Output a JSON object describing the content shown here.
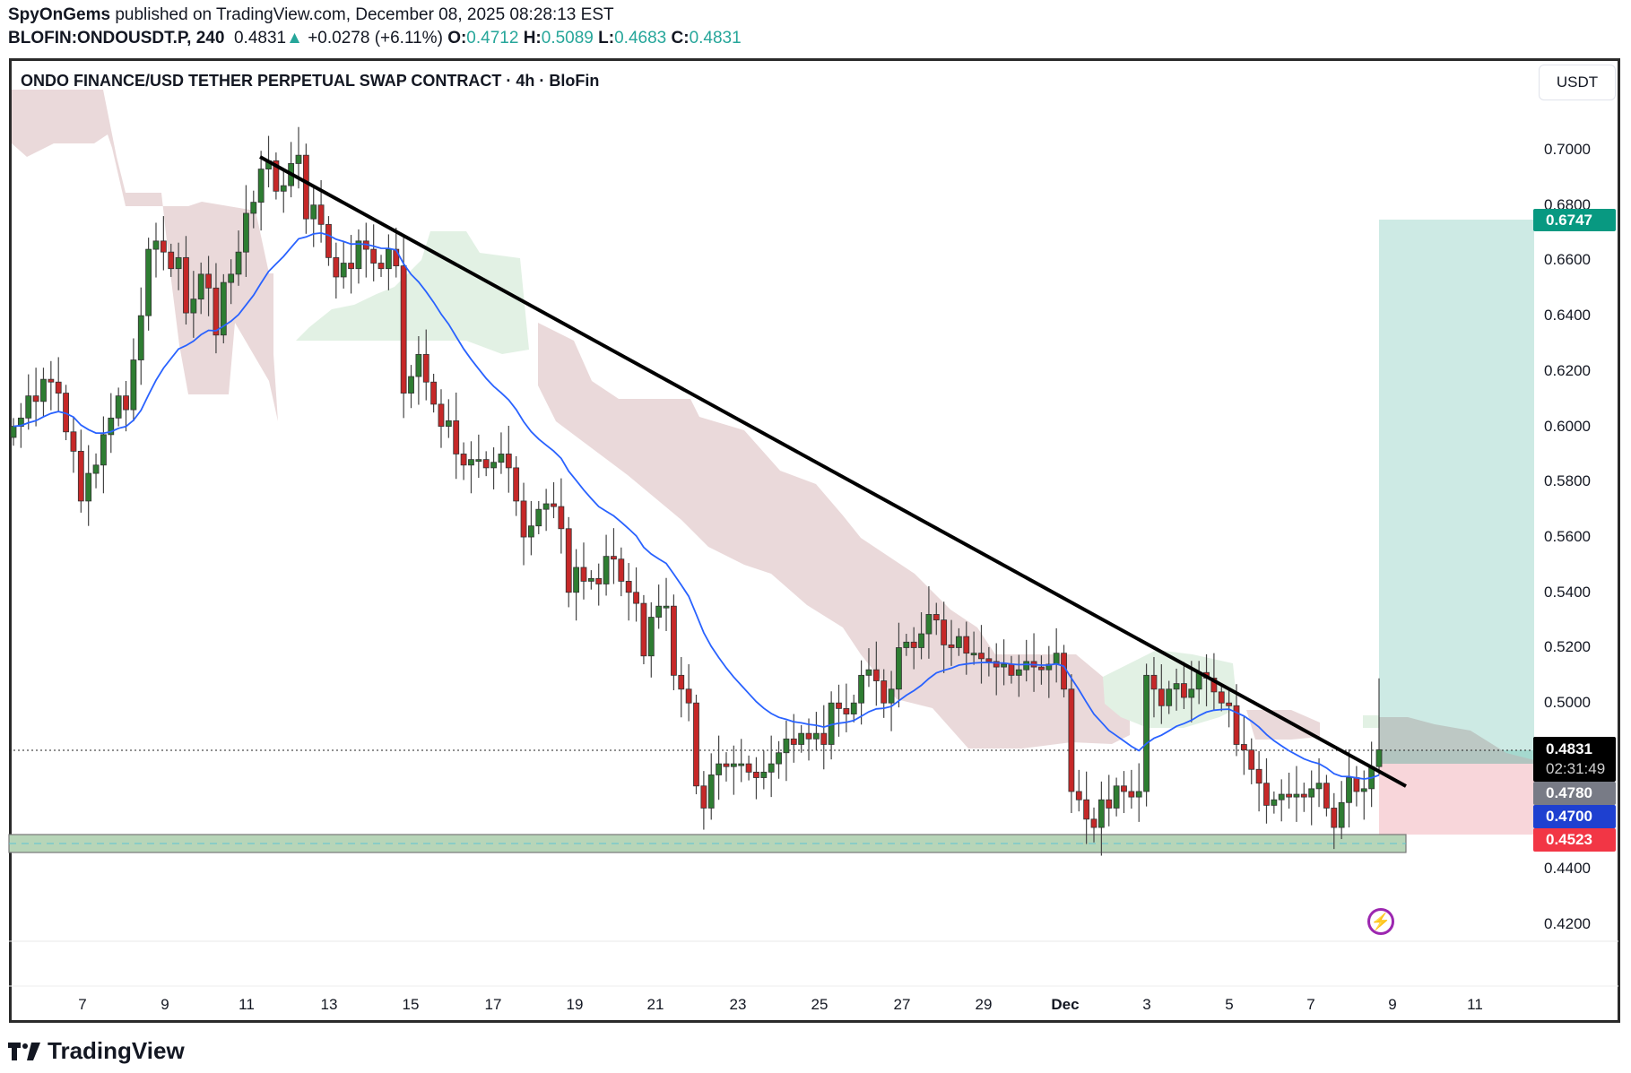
{
  "header": {
    "author": "SpyOnGems",
    "published_text": "published on TradingView.com, December 08, 2025 08:28:13 EST",
    "symbol": "BLOFIN:ONDOUSDT.P, 240",
    "last": "0.4831",
    "change": "+0.0278 (+6.11%)",
    "o_label": "O:",
    "o": "0.4712",
    "h_label": "H:",
    "h": "0.5089",
    "l_label": "L:",
    "l": "0.4683",
    "c_label": "C:",
    "c": "0.4831"
  },
  "chart_title": "ONDO FINANCE/USD TETHER PERPETUAL SWAP CONTRACT · 4h · BloFin",
  "currency_button": "USDT",
  "price_tags": {
    "target": "0.6747",
    "last_price": "0.4831",
    "countdown": "02:31:49",
    "entry": "0.4780",
    "ma": "0.4700",
    "stop": "0.4523"
  },
  "colors": {
    "up": "#2e7d32",
    "down": "#c62828",
    "ma_line": "#2962ff",
    "target_tag": "#089981",
    "entry_tag": "#787b86",
    "ma_tag": "#1e40d0",
    "stop_tag": "#f23645",
    "indicator_icon": "#9c27b0"
  },
  "footer": {
    "brand": "TradingView"
  },
  "chart_data": {
    "type": "candlestick",
    "title": "ONDO FINANCE/USD TETHER PERPETUAL SWAP CONTRACT · 4h · BloFin",
    "xlabel": "",
    "ylabel": "USDT",
    "y_ticks": [
      "0.7000",
      "0.6800",
      "0.6600",
      "0.6400",
      "0.6200",
      "0.6000",
      "0.5800",
      "0.5600",
      "0.5400",
      "0.5200",
      "0.5000",
      "0.4400",
      "0.4200"
    ],
    "x_ticks": [
      "7",
      "9",
      "11",
      "13",
      "15",
      "17",
      "19",
      "21",
      "23",
      "25",
      "27",
      "29",
      "Dec",
      "3",
      "5",
      "7",
      "9",
      "11"
    ],
    "ylim": [
      0.405,
      0.73
    ],
    "closes": [
      0.6,
      0.603,
      0.611,
      0.609,
      0.617,
      0.616,
      0.612,
      0.598,
      0.591,
      0.573,
      0.583,
      0.586,
      0.597,
      0.603,
      0.611,
      0.606,
      0.624,
      0.64,
      0.664,
      0.667,
      0.663,
      0.657,
      0.661,
      0.641,
      0.646,
      0.655,
      0.65,
      0.633,
      0.652,
      0.655,
      0.663,
      0.677,
      0.681,
      0.693,
      0.696,
      0.685,
      0.687,
      0.695,
      0.698,
      0.675,
      0.68,
      0.673,
      0.661,
      0.654,
      0.659,
      0.657,
      0.667,
      0.664,
      0.659,
      0.657,
      0.664,
      0.658,
      0.612,
      0.618,
      0.626,
      0.616,
      0.608,
      0.6,
      0.602,
      0.59,
      0.586,
      0.588,
      0.588,
      0.585,
      0.587,
      0.59,
      0.585,
      0.573,
      0.56,
      0.564,
      0.57,
      0.572,
      0.571,
      0.563,
      0.54,
      0.549,
      0.544,
      0.545,
      0.543,
      0.553,
      0.552,
      0.544,
      0.54,
      0.536,
      0.517,
      0.531,
      0.535,
      0.535,
      0.51,
      0.505,
      0.5,
      0.47,
      0.462,
      0.474,
      0.478,
      0.477,
      0.478,
      0.478,
      0.475,
      0.473,
      0.475,
      0.478,
      0.482,
      0.487,
      0.485,
      0.489,
      0.487,
      0.489,
      0.485,
      0.5,
      0.498,
      0.496,
      0.5,
      0.51,
      0.512,
      0.508,
      0.5,
      0.505,
      0.52,
      0.522,
      0.52,
      0.525,
      0.532,
      0.53,
      0.521,
      0.52,
      0.524,
      0.518,
      0.518,
      0.516,
      0.515,
      0.513,
      0.514,
      0.51,
      0.512,
      0.515,
      0.513,
      0.512,
      0.514,
      0.518,
      0.505,
      0.468,
      0.465,
      0.458,
      0.455,
      0.465,
      0.462,
      0.47,
      0.468,
      0.466,
      0.468,
      0.51,
      0.505,
      0.499,
      0.505,
      0.507,
      0.502,
      0.505,
      0.511,
      0.509,
      0.504,
      0.5,
      0.499,
      0.485,
      0.483,
      0.476,
      0.471,
      0.463,
      0.465,
      0.467,
      0.466,
      0.467,
      0.466,
      0.469,
      0.471,
      0.462,
      0.455,
      0.464,
      0.473,
      0.468,
      0.469,
      0.477,
      0.4831
    ],
    "annotations": {
      "trendline": {
        "from_price": 0.697,
        "to_price": 0.4735
      },
      "support_zone": [
        0.4463,
        0.4523
      ],
      "long_position": {
        "entry": 0.478,
        "target": 0.6747,
        "stop": 0.4523
      }
    }
  }
}
